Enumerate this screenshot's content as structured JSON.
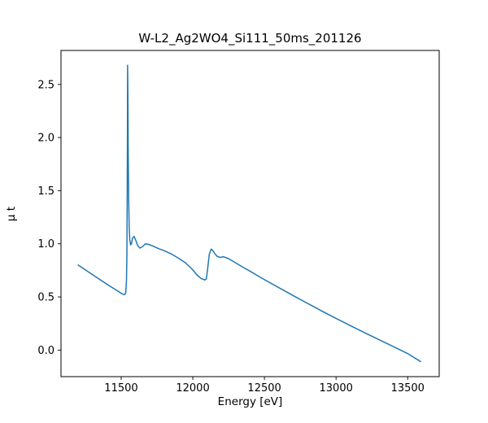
{
  "chart_data": {
    "type": "line",
    "title": "W-L2_Ag2WO4_Si111_50ms_201126",
    "xlabel": "Energy [eV]",
    "ylabel": "μ t",
    "xlim": [
      11080,
      13720
    ],
    "ylim": [
      -0.25,
      2.82
    ],
    "grid": false,
    "legend_position": "none",
    "line_color": "#1f77b4",
    "line_width": 1.5,
    "axes_color": "#000000",
    "xtick_values": [
      11500,
      12000,
      12500,
      13000,
      13500
    ],
    "xtick_labels": [
      "11500",
      "12000",
      "12500",
      "13000",
      "13500"
    ],
    "ytick_values": [
      0.0,
      0.5,
      1.0,
      1.5,
      2.0,
      2.5
    ],
    "ytick_labels": [
      "0.0",
      "0.5",
      "1.0",
      "1.5",
      "2.0",
      "2.5"
    ],
    "series": [
      {
        "name": "mu_t_spectrum",
        "points": [
          [
            11200,
            0.8
          ],
          [
            11250,
            0.755
          ],
          [
            11300,
            0.71
          ],
          [
            11350,
            0.665
          ],
          [
            11400,
            0.62
          ],
          [
            11450,
            0.578
          ],
          [
            11480,
            0.553
          ],
          [
            11500,
            0.535
          ],
          [
            11515,
            0.524
          ],
          [
            11525,
            0.522
          ],
          [
            11532,
            0.54
          ],
          [
            11537,
            0.65
          ],
          [
            11540,
            0.9
          ],
          [
            11542,
            1.4
          ],
          [
            11544,
            2.1
          ],
          [
            11545,
            2.68
          ],
          [
            11547,
            2.4
          ],
          [
            11549,
            1.9
          ],
          [
            11552,
            1.45
          ],
          [
            11556,
            1.15
          ],
          [
            11560,
            1.04
          ],
          [
            11566,
            0.99
          ],
          [
            11572,
            1.0
          ],
          [
            11580,
            1.055
          ],
          [
            11590,
            1.07
          ],
          [
            11600,
            1.04
          ],
          [
            11615,
            0.985
          ],
          [
            11630,
            0.96
          ],
          [
            11650,
            0.975
          ],
          [
            11670,
            1.0
          ],
          [
            11690,
            0.995
          ],
          [
            11720,
            0.98
          ],
          [
            11760,
            0.955
          ],
          [
            11800,
            0.935
          ],
          [
            11850,
            0.905
          ],
          [
            11900,
            0.865
          ],
          [
            11950,
            0.82
          ],
          [
            12000,
            0.755
          ],
          [
            12030,
            0.705
          ],
          [
            12060,
            0.672
          ],
          [
            12085,
            0.66
          ],
          [
            12095,
            0.672
          ],
          [
            12105,
            0.78
          ],
          [
            12115,
            0.9
          ],
          [
            12128,
            0.95
          ],
          [
            12140,
            0.935
          ],
          [
            12155,
            0.905
          ],
          [
            12170,
            0.882
          ],
          [
            12190,
            0.872
          ],
          [
            12215,
            0.878
          ],
          [
            12250,
            0.86
          ],
          [
            12300,
            0.82
          ],
          [
            12350,
            0.78
          ],
          [
            12400,
            0.742
          ],
          [
            12450,
            0.702
          ],
          [
            12500,
            0.663
          ],
          [
            12600,
            0.588
          ],
          [
            12700,
            0.513
          ],
          [
            12800,
            0.44
          ],
          [
            12900,
            0.368
          ],
          [
            13000,
            0.298
          ],
          [
            13100,
            0.23
          ],
          [
            13200,
            0.163
          ],
          [
            13300,
            0.098
          ],
          [
            13400,
            0.033
          ],
          [
            13500,
            -0.033
          ],
          [
            13590,
            -0.108
          ]
        ]
      }
    ]
  }
}
